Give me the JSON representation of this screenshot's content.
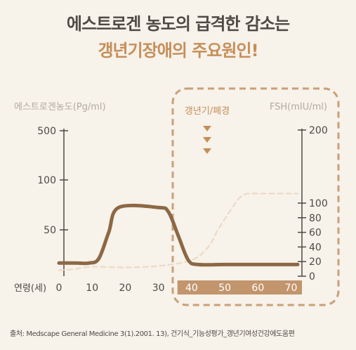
{
  "title_line1": "에스트로겐 농도의 급격한 감소는",
  "title_line2": "갱년기장애의 주요원인!",
  "source": "출처: Medscape General Medicine 3(1).2001. 13), 건기식_기능성평가_갱년기여성건강에도움편",
  "chart_data": {
    "type": "line",
    "xlabel": "연령(세)",
    "x_ticks": [
      "0",
      "10",
      "20",
      "30",
      "40",
      "50",
      "60",
      "70"
    ],
    "xlim": [
      0,
      72
    ],
    "y_left_label": "에스트로겐농도(Pg/ml)",
    "y_left_ticks": [
      "500",
      "100",
      "50"
    ],
    "y_right_label": "FSH(mIU/ml)",
    "y_right_ticks": [
      "200",
      "100",
      "80",
      "60",
      "40",
      "20",
      "0"
    ],
    "y_right_lim": [
      0,
      200
    ],
    "annotation": "갱년기/폐경",
    "highlight_range": [
      37,
      72
    ],
    "colors": {
      "estrogen": "#8c6845",
      "fsh": "#ecd8c3",
      "highlight_band": "#c2956c",
      "box_dash": "#c9a078",
      "annotation": "#c58f5a",
      "axis": "#4f4a45",
      "axis_label": "#b3aaa1"
    },
    "series": [
      {
        "key": "estrogen",
        "axis": "left",
        "x": [
          0,
          5,
          9,
          12,
          15,
          18,
          30,
          33,
          36,
          39,
          42,
          50,
          60,
          72
        ],
        "y": [
          18,
          18,
          18,
          24,
          60,
          94,
          94,
          88,
          55,
          22,
          16,
          16,
          16,
          16
        ]
      },
      {
        "key": "fsh",
        "axis": "right",
        "x": [
          0,
          5,
          10,
          20,
          30,
          40,
          45,
          48,
          51,
          54,
          56,
          58,
          60,
          72
        ],
        "y": [
          8,
          10,
          13,
          12,
          14,
          22,
          40,
          64,
          85,
          105,
          112,
          113,
          113,
          113
        ]
      }
    ]
  }
}
